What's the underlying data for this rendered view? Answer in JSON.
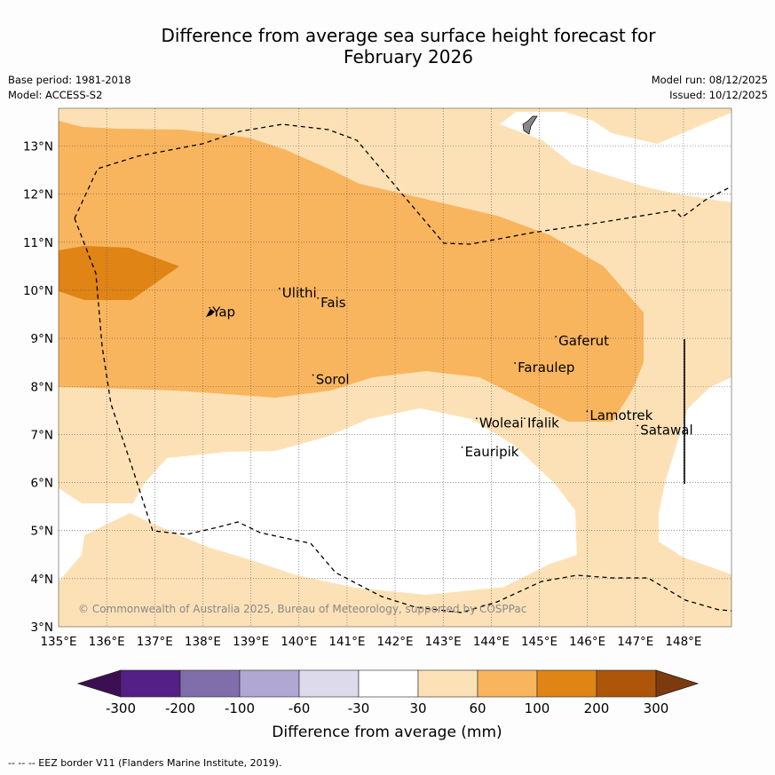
{
  "title_line1": "Difference from average sea surface height forecast for",
  "title_line2": "February 2026",
  "meta": {
    "base_period": "Base period: 1981-2018",
    "model": "Model: ACCESS-S2",
    "model_run": "Model run: 08/12/2025",
    "issued": "Issued: 10/12/2025"
  },
  "map": {
    "lon_range": [
      135,
      149
    ],
    "lat_range": [
      3,
      13.8
    ],
    "x_ticks": [
      "135°E",
      "136°E",
      "137°E",
      "138°E",
      "139°E",
      "140°E",
      "141°E",
      "142°E",
      "143°E",
      "144°E",
      "145°E",
      "146°E",
      "147°E",
      "148°E"
    ],
    "y_ticks": [
      "3°N",
      "4°N",
      "5°N",
      "6°N",
      "7°N",
      "8°N",
      "9°N",
      "10°N",
      "11°N",
      "12°N",
      "13°N"
    ],
    "copyright": "© Commonwealth of Australia 2025, Bureau of Meteorology, supported by COSPPac",
    "places": [
      {
        "name": "Yap",
        "lon": 138.2,
        "lat": 9.45
      },
      {
        "name": "Ulithi",
        "lon": 139.65,
        "lat": 9.85
      },
      {
        "name": "Fais",
        "lon": 140.45,
        "lat": 9.65
      },
      {
        "name": "Sorol",
        "lon": 140.35,
        "lat": 8.05
      },
      {
        "name": "Gaferut",
        "lon": 145.4,
        "lat": 8.85
      },
      {
        "name": "Faraulep",
        "lon": 144.55,
        "lat": 8.3
      },
      {
        "name": "Lamotrek",
        "lon": 146.05,
        "lat": 7.3
      },
      {
        "name": "Satawal",
        "lon": 147.1,
        "lat": 7.0
      },
      {
        "name": "Woleai",
        "lon": 143.75,
        "lat": 7.15
      },
      {
        "name": "Ifalik",
        "lon": 144.75,
        "lat": 7.15
      },
      {
        "name": "Eauripik",
        "lon": 143.45,
        "lat": 6.55
      }
    ]
  },
  "colorbar": {
    "ticks": [
      "-300",
      "-200",
      "-100",
      "-60",
      "-30",
      "30",
      "60",
      "100",
      "200",
      "300"
    ],
    "colors": [
      "#3c0f52",
      "#541f86",
      "#7f6eaa",
      "#b0a8d2",
      "#dcdaeb",
      "#ffffff",
      "#fde1b6",
      "#f9b55e",
      "#e08416",
      "#ad5609",
      "#7c3a0e"
    ],
    "label": "Difference from average (mm)"
  },
  "footer": "--  --  -- EEZ border V11 (Flanders Marine Institute, 2019)."
}
